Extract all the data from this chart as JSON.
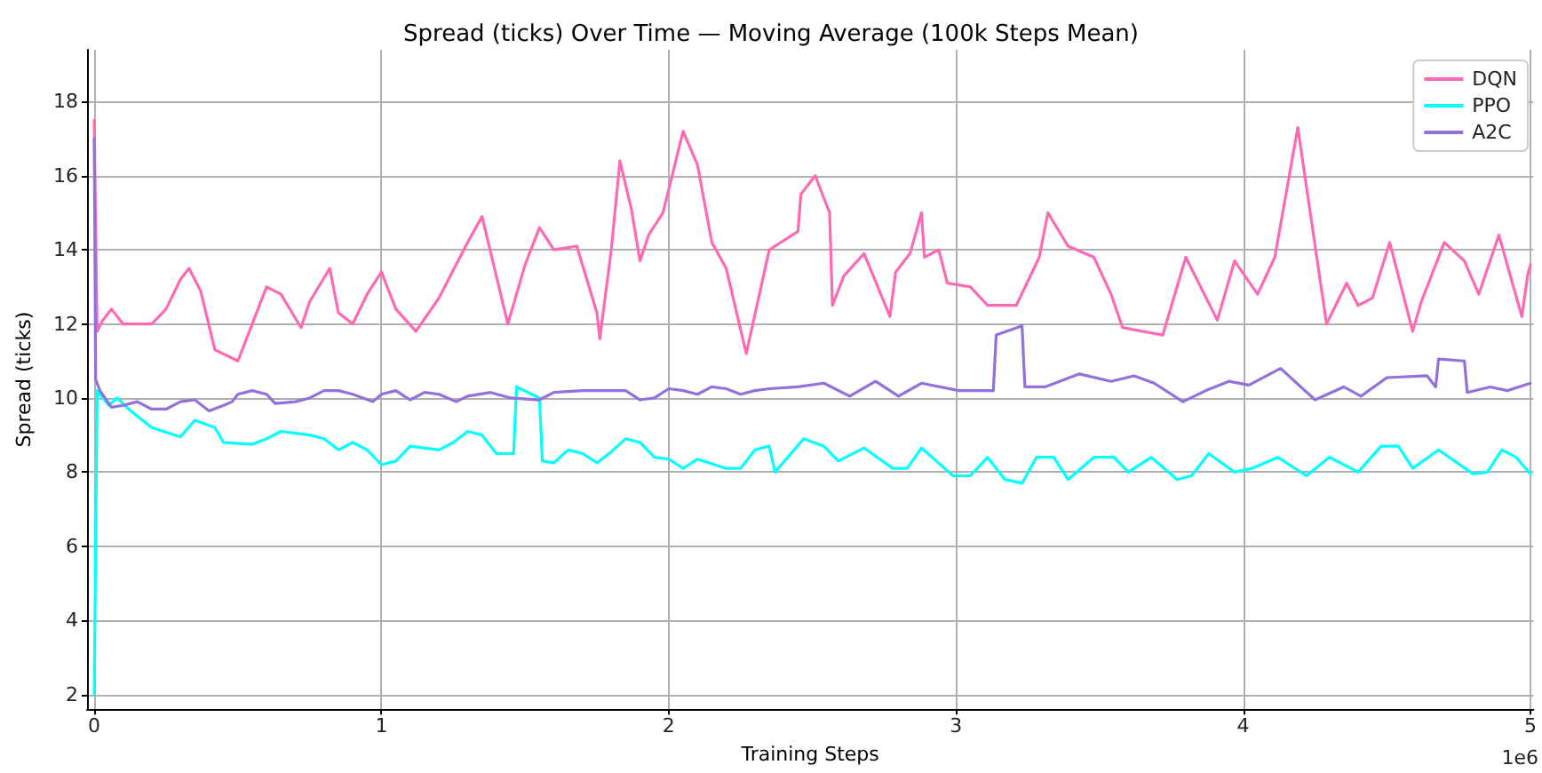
{
  "chart_data": {
    "type": "line",
    "title": "Spread (ticks) Over Time — Moving Average (100k Steps Mean)",
    "xlabel": "Training Steps",
    "ylabel": "Spread (ticks)",
    "annotations": [
      "1e6"
    ],
    "xlim": [
      -0.025,
      5.01
    ],
    "xticks": [
      0,
      1,
      2,
      3,
      4,
      5
    ],
    "ylim": [
      1.6,
      19.4
    ],
    "yticks": [
      2,
      4,
      6,
      8,
      10,
      12,
      14,
      16,
      18
    ],
    "grid": true,
    "legend": "top right",
    "marker": "none",
    "line_style": "solid",
    "series": [
      {
        "name": "DQN",
        "color": "#ff69b4",
        "x": [
          0,
          0.01,
          0.03,
          0.06,
          0.1,
          0.2,
          0.25,
          0.3,
          0.33,
          0.37,
          0.42,
          0.5,
          0.55,
          0.6,
          0.65,
          0.72,
          0.75,
          0.82,
          0.85,
          0.9,
          0.95,
          1.0,
          1.05,
          1.12,
          1.2,
          1.3,
          1.35,
          1.44,
          1.5,
          1.55,
          1.6,
          1.68,
          1.75,
          1.76,
          1.8,
          1.83,
          1.87,
          1.9,
          1.93,
          1.98,
          2.05,
          2.1,
          2.15,
          2.2,
          2.27,
          2.35,
          2.37,
          2.45,
          2.46,
          2.51,
          2.56,
          2.57,
          2.61,
          2.68,
          2.77,
          2.79,
          2.84,
          2.88,
          2.89,
          2.94,
          2.97,
          3.05,
          3.11,
          3.21,
          3.29,
          3.32,
          3.39,
          3.48,
          3.54,
          3.58,
          3.72,
          3.8,
          3.91,
          3.97,
          4.05,
          4.11,
          4.19,
          4.29,
          4.36,
          4.4,
          4.45,
          4.51,
          4.59,
          4.62,
          4.7,
          4.77,
          4.82,
          4.89,
          4.97,
          4.99,
          5.0
        ],
        "values": [
          17.5,
          11.8,
          12.1,
          12.4,
          12.0,
          12.0,
          12.4,
          13.2,
          13.5,
          12.9,
          11.3,
          11.0,
          12.0,
          13.0,
          12.8,
          11.9,
          12.6,
          13.5,
          12.3,
          12.0,
          12.8,
          13.4,
          12.4,
          11.8,
          12.7,
          14.2,
          14.9,
          12.0,
          13.6,
          14.6,
          14.0,
          14.1,
          12.3,
          11.6,
          14.0,
          16.4,
          15.1,
          13.7,
          14.4,
          15.0,
          17.2,
          16.3,
          14.2,
          13.5,
          11.2,
          14.0,
          14.1,
          14.5,
          15.5,
          16.0,
          15.0,
          12.5,
          13.3,
          13.9,
          12.2,
          13.4,
          13.9,
          15.0,
          13.8,
          14.0,
          13.1,
          13.0,
          12.5,
          12.5,
          13.8,
          15.0,
          14.1,
          13.8,
          12.8,
          11.9,
          11.7,
          13.8,
          12.1,
          13.7,
          12.8,
          13.8,
          17.3,
          12.0,
          13.1,
          12.5,
          12.7,
          14.2,
          11.8,
          12.6,
          14.2,
          13.7,
          12.8,
          14.4,
          12.2,
          13.3,
          13.6
        ]
      },
      {
        "name": "PPO",
        "color": "#00ffff",
        "x": [
          0,
          0.01,
          0.05,
          0.08,
          0.12,
          0.2,
          0.3,
          0.35,
          0.42,
          0.45,
          0.55,
          0.6,
          0.65,
          0.75,
          0.8,
          0.85,
          0.9,
          0.95,
          1.0,
          1.05,
          1.1,
          1.2,
          1.25,
          1.3,
          1.35,
          1.4,
          1.46,
          1.47,
          1.55,
          1.56,
          1.6,
          1.65,
          1.7,
          1.75,
          1.8,
          1.85,
          1.9,
          1.95,
          2.0,
          2.05,
          2.1,
          2.2,
          2.25,
          2.3,
          2.35,
          2.37,
          2.47,
          2.54,
          2.59,
          2.68,
          2.78,
          2.83,
          2.88,
          2.99,
          3.05,
          3.11,
          3.17,
          3.23,
          3.28,
          3.34,
          3.39,
          3.48,
          3.55,
          3.6,
          3.68,
          3.77,
          3.82,
          3.88,
          3.97,
          4.03,
          4.12,
          4.22,
          4.3,
          4.4,
          4.48,
          4.54,
          4.59,
          4.68,
          4.8,
          4.85,
          4.9,
          4.95,
          5.0
        ],
        "values": [
          2.0,
          10.2,
          9.8,
          10.0,
          9.7,
          9.2,
          8.95,
          9.4,
          9.2,
          8.8,
          8.75,
          8.9,
          9.1,
          9.0,
          8.9,
          8.6,
          8.8,
          8.6,
          8.2,
          8.3,
          8.7,
          8.6,
          8.8,
          9.1,
          9.0,
          8.5,
          8.5,
          10.3,
          10.0,
          8.3,
          8.25,
          8.6,
          8.5,
          8.25,
          8.55,
          8.9,
          8.8,
          8.4,
          8.35,
          8.1,
          8.35,
          8.1,
          8.1,
          8.6,
          8.7,
          8.0,
          8.9,
          8.7,
          8.3,
          8.65,
          8.1,
          8.1,
          8.65,
          7.9,
          7.9,
          8.4,
          7.8,
          7.7,
          8.4,
          8.4,
          7.8,
          8.4,
          8.4,
          8.0,
          8.4,
          7.8,
          7.9,
          8.5,
          8.0,
          8.1,
          8.4,
          7.9,
          8.4,
          8.0,
          8.7,
          8.7,
          8.1,
          8.6,
          7.95,
          8.0,
          8.6,
          8.4,
          7.95
        ]
      },
      {
        "name": "A2C",
        "color": "#9370db",
        "x": [
          0,
          0.005,
          0.02,
          0.06,
          0.1,
          0.15,
          0.2,
          0.25,
          0.3,
          0.35,
          0.4,
          0.45,
          0.48,
          0.5,
          0.55,
          0.6,
          0.63,
          0.7,
          0.75,
          0.8,
          0.85,
          0.9,
          0.97,
          1.0,
          1.05,
          1.1,
          1.15,
          1.2,
          1.26,
          1.3,
          1.38,
          1.45,
          1.55,
          1.6,
          1.7,
          1.85,
          1.9,
          1.95,
          2.0,
          2.05,
          2.1,
          2.15,
          2.2,
          2.25,
          2.3,
          2.35,
          2.45,
          2.54,
          2.63,
          2.72,
          2.8,
          2.88,
          3.01,
          3.13,
          3.14,
          3.23,
          3.24,
          3.31,
          3.43,
          3.54,
          3.62,
          3.69,
          3.79,
          3.87,
          3.95,
          4.02,
          4.13,
          4.25,
          4.35,
          4.41,
          4.5,
          4.64,
          4.67,
          4.68,
          4.77,
          4.78,
          4.86,
          4.92,
          5.0
        ],
        "values": [
          17.0,
          10.5,
          10.2,
          9.75,
          9.8,
          9.9,
          9.7,
          9.7,
          9.9,
          9.95,
          9.65,
          9.8,
          9.9,
          10.1,
          10.2,
          10.1,
          9.85,
          9.9,
          10.0,
          10.2,
          10.2,
          10.1,
          9.9,
          10.1,
          10.2,
          9.95,
          10.15,
          10.1,
          9.9,
          10.05,
          10.15,
          10.0,
          9.95,
          10.15,
          10.2,
          10.2,
          9.95,
          10.0,
          10.25,
          10.2,
          10.1,
          10.3,
          10.25,
          10.1,
          10.2,
          10.25,
          10.3,
          10.4,
          10.05,
          10.45,
          10.05,
          10.4,
          10.2,
          10.2,
          11.7,
          11.95,
          10.3,
          10.3,
          10.65,
          10.45,
          10.6,
          10.4,
          9.9,
          10.2,
          10.45,
          10.35,
          10.8,
          9.95,
          10.3,
          10.05,
          10.55,
          10.6,
          10.3,
          11.05,
          11.0,
          10.15,
          10.3,
          10.2,
          10.4
        ]
      }
    ]
  }
}
